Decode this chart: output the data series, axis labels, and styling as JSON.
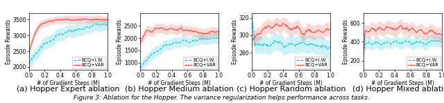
{
  "subplots": [
    {
      "title": "(a) Hopper Expert ablation",
      "ylabel": "Episode Rewards",
      "xlabel": "# of Gradient Steps (M)",
      "ylim": [
        1900,
        3700
      ],
      "yticks": [
        2000,
        2500,
        3000,
        3500
      ],
      "xlim": [
        0,
        1.0
      ],
      "xticks": [
        0.0,
        0.2,
        0.4,
        0.6,
        0.8,
        1.0
      ],
      "line1_label": "BCQ+I.W.",
      "line2_label": "BCQ+VAR",
      "line1_color": "#00bcd4",
      "line2_color": "#f44336",
      "line1_style": "--",
      "line2_style": "-",
      "seed": 1
    },
    {
      "title": "(b) Hopper Medium ablation",
      "ylabel": "Episode Rewards",
      "xlabel": "# of Gradient Steps (M)",
      "ylim": [
        700,
        3000
      ],
      "yticks": [
        1000,
        1500,
        2000,
        2500
      ],
      "xlim": [
        0,
        1.0
      ],
      "xticks": [
        0.0,
        0.2,
        0.4,
        0.6,
        0.8,
        1.0
      ],
      "line1_label": "BCQ+I.W.",
      "line2_label": "BCQ+VAR",
      "line1_color": "#00bcd4",
      "line2_color": "#f44336",
      "line1_style": "--",
      "line2_style": "-",
      "seed": 2
    },
    {
      "title": "(c) Hopper Random ablation",
      "ylabel": "Episode Rewards",
      "xlabel": "# of Gradient Steps (M)",
      "ylim": [
        260,
        325
      ],
      "yticks": [
        280,
        300,
        320
      ],
      "xlim": [
        0,
        1.0
      ],
      "xticks": [
        0.0,
        0.2,
        0.4,
        0.6,
        0.8,
        1.0
      ],
      "line1_label": "BCQ+I.W.",
      "line2_label": "BCQ+VAR",
      "line1_color": "#00bcd4",
      "line2_color": "#f44336",
      "line1_style": "--",
      "line2_style": "-",
      "seed": 3
    },
    {
      "title": "(d) Hopper Mixed ablation",
      "ylabel": "Episode Rewards",
      "xlabel": "# of Gradient Steps (M)",
      "ylim": [
        100,
        700
      ],
      "yticks": [
        200,
        400,
        600
      ],
      "xlim": [
        0,
        1.0
      ],
      "xticks": [
        0.0,
        0.2,
        0.4,
        0.6,
        0.8,
        1.0
      ],
      "line1_label": "BCQ+I.W.",
      "line2_label": "BCQ+VAR",
      "line1_color": "#00bcd4",
      "line2_color": "#f44336",
      "line1_style": "--",
      "line2_style": "-",
      "seed": 4
    }
  ],
  "figure_caption": "Figure 3: Ablation for the Hopper. The variance regularization helps performance across tasks.",
  "caption_fontsize": 6.5,
  "subtitle_fontsize": 8,
  "tick_fontsize": 5.5,
  "label_fontsize": 5.5
}
